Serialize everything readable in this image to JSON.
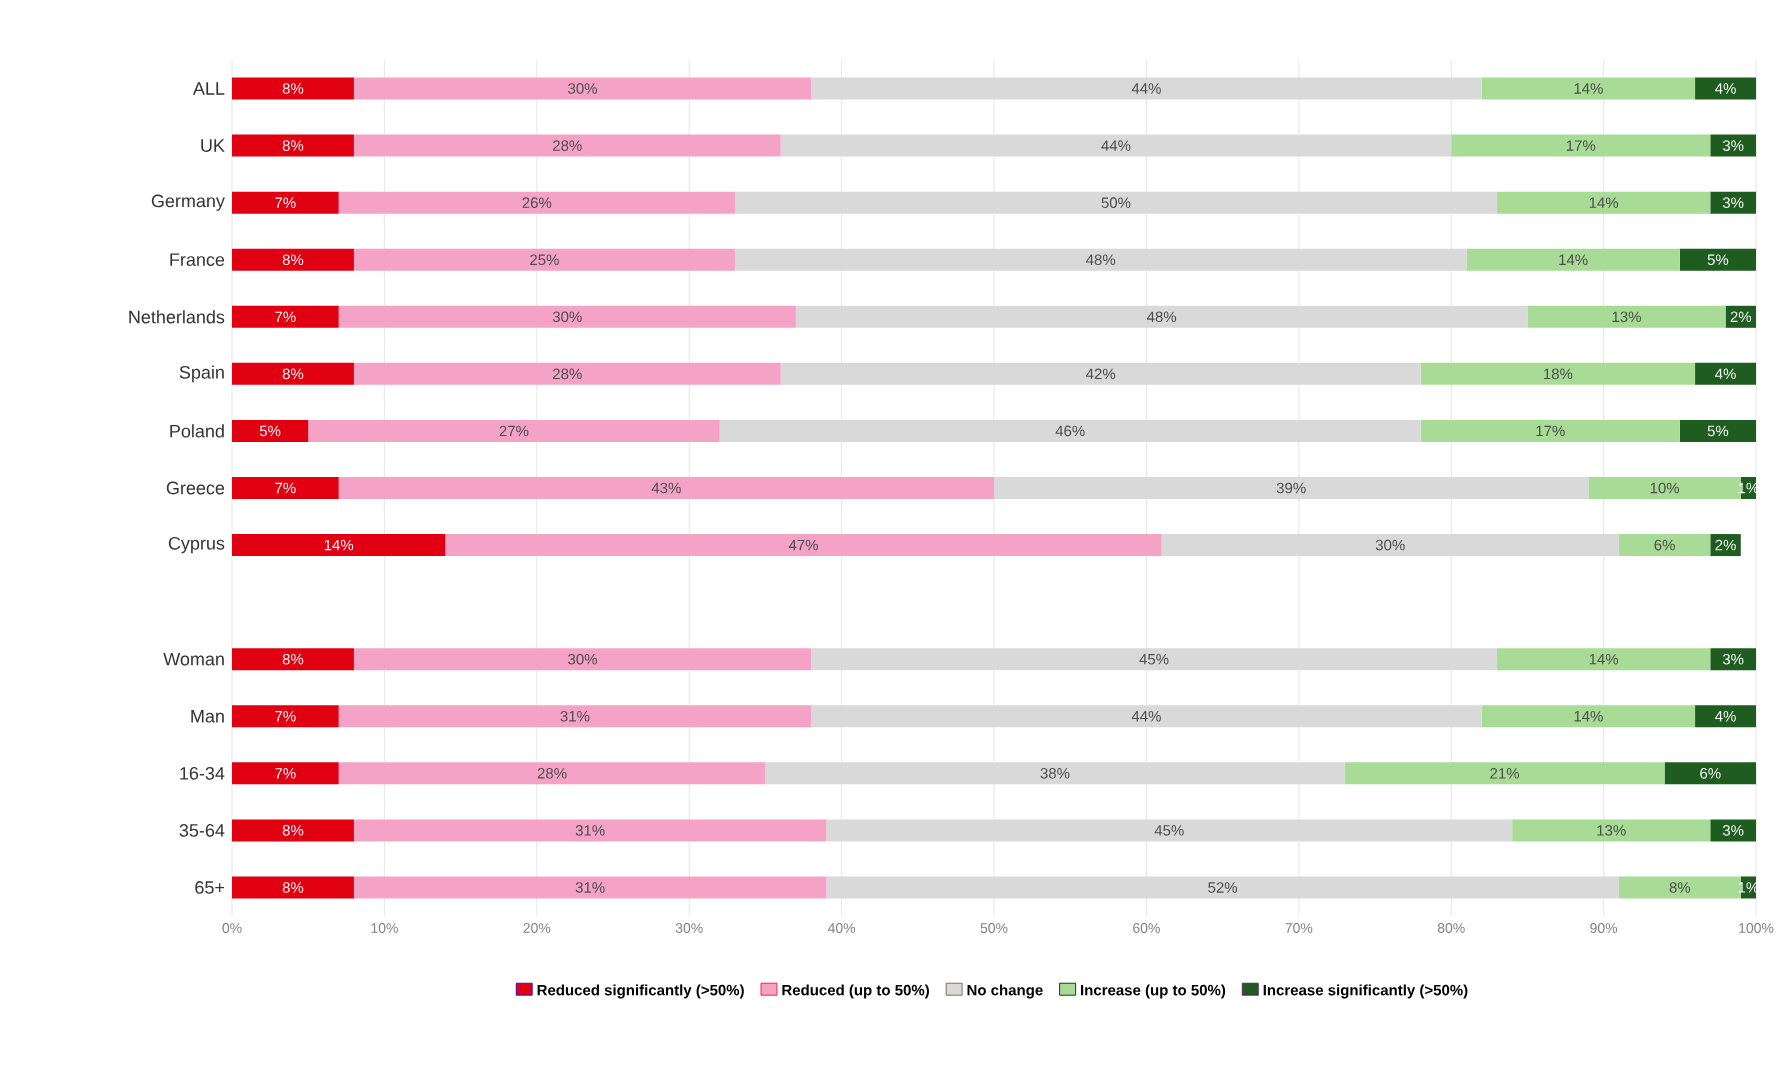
{
  "chart_data": {
    "type": "bar",
    "orientation": "horizontal",
    "stacked": true,
    "categories": [
      "ALL",
      "UK",
      "Germany",
      "France",
      "Netherlands",
      "Spain",
      "Poland",
      "Greece",
      "Cyprus",
      null,
      "Woman",
      "Man",
      "16-34",
      "35-64",
      "65+"
    ],
    "series": [
      {
        "name": "Reduced significantly (>50%)",
        "color": "#e00012",
        "values": [
          8,
          8,
          7,
          8,
          7,
          8,
          5,
          7,
          14,
          null,
          8,
          7,
          7,
          8,
          8
        ],
        "value_labels": [
          "8%",
          "8%",
          "7%",
          "8%",
          "7%",
          "8%",
          "5%",
          "7%",
          "14%",
          null,
          "8%",
          "7%",
          "7%",
          "8%",
          "8%"
        ]
      },
      {
        "name": "Reduced (up to 50%)",
        "color": "#f4a3c6",
        "values": [
          30,
          28,
          26,
          25,
          30,
          28,
          27,
          43,
          47,
          null,
          30,
          31,
          28,
          31,
          31
        ],
        "value_labels": [
          "30%",
          "28%",
          "26%",
          "25%",
          "30%",
          "28%",
          "27%",
          "43%",
          "47%",
          null,
          "30%",
          "31%",
          "28%",
          "31%",
          "31%"
        ]
      },
      {
        "name": "No change",
        "color": "#d9d9d9",
        "values": [
          44,
          44,
          50,
          48,
          48,
          42,
          46,
          39,
          30,
          null,
          45,
          44,
          38,
          45,
          52
        ],
        "value_labels": [
          "44%",
          "44%",
          "50%",
          "48%",
          "48%",
          "42%",
          "46%",
          "39%",
          "30%",
          null,
          "45%",
          "44%",
          "38%",
          "45%",
          "52%"
        ]
      },
      {
        "name": "Increase (up to 50%)",
        "color": "#a8dc96",
        "values": [
          14,
          17,
          14,
          14,
          13,
          18,
          17,
          10,
          6,
          null,
          14,
          14,
          21,
          13,
          8
        ],
        "value_labels": [
          "14%",
          "17%",
          "14%",
          "14%",
          "13%",
          "18%",
          "17%",
          "10%",
          "6%",
          null,
          "14%",
          "14%",
          "21%",
          "13%",
          "8%"
        ]
      },
      {
        "name": "Increase significantly (>50%)",
        "color": "#1f5c1f",
        "values": [
          4,
          3,
          3,
          5,
          2,
          4,
          5,
          1,
          2,
          null,
          3,
          4,
          6,
          3,
          1
        ],
        "value_labels": [
          "4%",
          "3%",
          "3%",
          "5%",
          "2%",
          "4%",
          "5%",
          "1%",
          "2%",
          null,
          "3%",
          "4%",
          "6%",
          "3%",
          "1%"
        ]
      }
    ],
    "xlim": [
      0,
      100
    ],
    "xticks": [
      {
        "value": 0,
        "label": "0%"
      },
      {
        "value": 10,
        "label": "10%"
      },
      {
        "value": 20,
        "label": "20%"
      },
      {
        "value": 30,
        "label": "30%"
      },
      {
        "value": 40,
        "label": "40%"
      },
      {
        "value": 50,
        "label": "50%"
      },
      {
        "value": 60,
        "label": "60%"
      },
      {
        "value": 70,
        "label": "70%"
      },
      {
        "value": 80,
        "label": "80%"
      },
      {
        "value": 90,
        "label": "90%"
      },
      {
        "value": 100,
        "label": "100%"
      }
    ],
    "grid": "x",
    "legend": "bottom"
  }
}
